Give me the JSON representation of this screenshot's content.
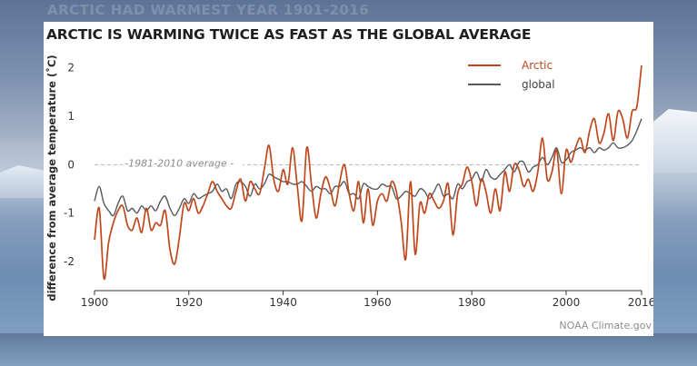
{
  "background": {
    "faint_caption": "ARCTIC HAD WARMEST YEAR 1901-2016"
  },
  "credit": "NOAA Climate.gov",
  "chart_data": {
    "type": "line",
    "title": "ARCTIC IS WARMING TWICE AS FAST AS THE GLOBAL AVERAGE",
    "xlabel": "",
    "ylabel": "difference from average temperature (˚C)",
    "xlim": [
      1900,
      2016
    ],
    "ylim": [
      -2.6,
      2.2
    ],
    "x_ticks": [
      1900,
      1920,
      1940,
      1960,
      1980,
      2000,
      2016
    ],
    "y_ticks": [
      2,
      1,
      0,
      -1,
      -2
    ],
    "grid": false,
    "legend_position": "top-right",
    "reference_line": {
      "y": 0,
      "label": "1981-2010 average",
      "style": "dashed"
    },
    "colors": {
      "Arctic": "#c0471c",
      "global": "#55595e"
    },
    "x": [
      1900,
      1901,
      1902,
      1903,
      1904,
      1905,
      1906,
      1907,
      1908,
      1909,
      1910,
      1911,
      1912,
      1913,
      1914,
      1915,
      1916,
      1917,
      1918,
      1919,
      1920,
      1921,
      1922,
      1923,
      1924,
      1925,
      1926,
      1927,
      1928,
      1929,
      1930,
      1931,
      1932,
      1933,
      1934,
      1935,
      1936,
      1937,
      1938,
      1939,
      1940,
      1941,
      1942,
      1943,
      1944,
      1945,
      1946,
      1947,
      1948,
      1949,
      1950,
      1951,
      1952,
      1953,
      1954,
      1955,
      1956,
      1957,
      1958,
      1959,
      1960,
      1961,
      1962,
      1963,
      1964,
      1965,
      1966,
      1967,
      1968,
      1969,
      1970,
      1971,
      1972,
      1973,
      1974,
      1975,
      1976,
      1977,
      1978,
      1979,
      1980,
      1981,
      1982,
      1983,
      1984,
      1985,
      1986,
      1987,
      1988,
      1989,
      1990,
      1991,
      1992,
      1993,
      1994,
      1995,
      1996,
      1997,
      1998,
      1999,
      2000,
      2001,
      2002,
      2003,
      2004,
      2005,
      2006,
      2007,
      2008,
      2009,
      2010,
      2011,
      2012,
      2013,
      2014,
      2015,
      2016
    ],
    "series": [
      {
        "name": "Arctic",
        "values": [
          -1.55,
          -0.9,
          -2.35,
          -1.6,
          -1.2,
          -0.95,
          -0.85,
          -1.25,
          -1.35,
          -1.1,
          -1.4,
          -0.9,
          -1.35,
          -1.2,
          -1.25,
          -0.95,
          -1.75,
          -2.05,
          -1.5,
          -0.8,
          -0.95,
          -0.7,
          -1.0,
          -0.85,
          -0.6,
          -0.35,
          -0.55,
          -0.7,
          -0.85,
          -0.9,
          -0.55,
          -0.3,
          -0.75,
          -0.35,
          -0.5,
          -0.6,
          -0.1,
          0.4,
          -0.3,
          -0.55,
          -0.1,
          -0.4,
          0.35,
          -0.45,
          -1.15,
          0.35,
          -0.4,
          -1.1,
          -0.6,
          -0.25,
          -0.5,
          -0.85,
          -0.35,
          0.0,
          -0.6,
          -0.95,
          -0.35,
          -1.2,
          -0.5,
          -1.25,
          -0.75,
          -0.6,
          -0.75,
          -0.35,
          -0.55,
          -1.15,
          -1.95,
          -0.35,
          -1.85,
          -0.8,
          -1.0,
          -0.6,
          -0.75,
          -0.9,
          -0.75,
          -0.4,
          -1.45,
          -0.6,
          -0.4,
          -0.05,
          -0.35,
          -0.85,
          -0.3,
          -0.55,
          -1.0,
          -0.5,
          -0.95,
          -0.15,
          -0.55,
          0.0,
          -0.1,
          -0.45,
          -0.3,
          -0.55,
          -0.15,
          0.55,
          -0.3,
          -0.15,
          0.3,
          -0.6,
          0.3,
          0.05,
          0.35,
          0.55,
          0.25,
          0.7,
          0.95,
          0.45,
          0.65,
          1.05,
          0.5,
          1.1,
          0.95,
          0.55,
          1.1,
          1.2,
          2.05
        ]
      },
      {
        "name": "global",
        "values": [
          -0.75,
          -0.45,
          -0.8,
          -0.95,
          -1.05,
          -0.8,
          -0.65,
          -0.95,
          -0.9,
          -1.0,
          -0.85,
          -0.95,
          -0.85,
          -0.95,
          -0.75,
          -0.65,
          -0.9,
          -1.05,
          -0.9,
          -0.7,
          -0.8,
          -0.6,
          -0.7,
          -0.65,
          -0.6,
          -0.55,
          -0.4,
          -0.55,
          -0.5,
          -0.7,
          -0.4,
          -0.35,
          -0.45,
          -0.65,
          -0.4,
          -0.5,
          -0.4,
          -0.2,
          -0.25,
          -0.3,
          -0.35,
          -0.35,
          -0.4,
          -0.4,
          -0.35,
          -0.45,
          -0.55,
          -0.45,
          -0.5,
          -0.5,
          -0.6,
          -0.45,
          -0.45,
          -0.35,
          -0.6,
          -0.6,
          -0.7,
          -0.4,
          -0.45,
          -0.5,
          -0.5,
          -0.4,
          -0.45,
          -0.45,
          -0.7,
          -0.65,
          -0.55,
          -0.6,
          -0.65,
          -0.5,
          -0.55,
          -0.7,
          -0.55,
          -0.4,
          -0.65,
          -0.6,
          -0.7,
          -0.4,
          -0.5,
          -0.35,
          -0.3,
          -0.15,
          -0.35,
          -0.1,
          -0.25,
          -0.3,
          -0.2,
          -0.1,
          0.0,
          -0.15,
          0.05,
          0.05,
          -0.15,
          -0.05,
          0.0,
          0.15,
          0.0,
          0.15,
          0.35,
          0.05,
          0.1,
          0.25,
          0.3,
          0.35,
          0.3,
          0.35,
          0.25,
          0.35,
          0.3,
          0.35,
          0.45,
          0.35,
          0.35,
          0.4,
          0.5,
          0.7,
          0.95
        ]
      }
    ]
  }
}
